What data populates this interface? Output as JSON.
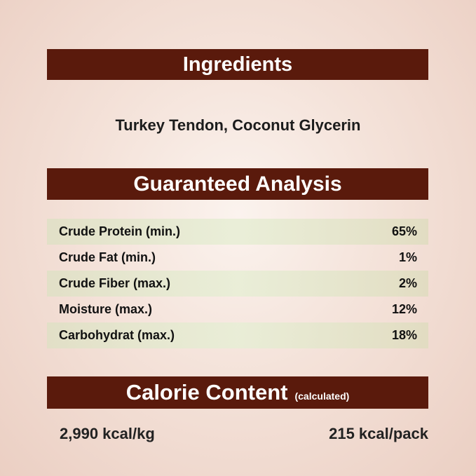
{
  "ingredients": {
    "title": "Ingredients",
    "text": "Turkey Tendon, Coconut Glycerin"
  },
  "analysis": {
    "title": "Guaranteed Analysis",
    "rows": [
      {
        "label": "Crude Protein (min.)",
        "value": "65%"
      },
      {
        "label": "Crude Fat (min.)",
        "value": "1%"
      },
      {
        "label": "Crude Fiber (max.)",
        "value": "2%"
      },
      {
        "label": "Moisture (max.)",
        "value": "12%"
      },
      {
        "label": "Carbohydrat (max.)",
        "value": "18%"
      }
    ]
  },
  "calorie": {
    "title": "Calorie Content",
    "note": "(calculated)",
    "per_kg": "2,990 kcal/kg",
    "per_pack": "215 kcal/pack"
  },
  "colors": {
    "banner": "#5a1a0c",
    "text": "#111111"
  }
}
